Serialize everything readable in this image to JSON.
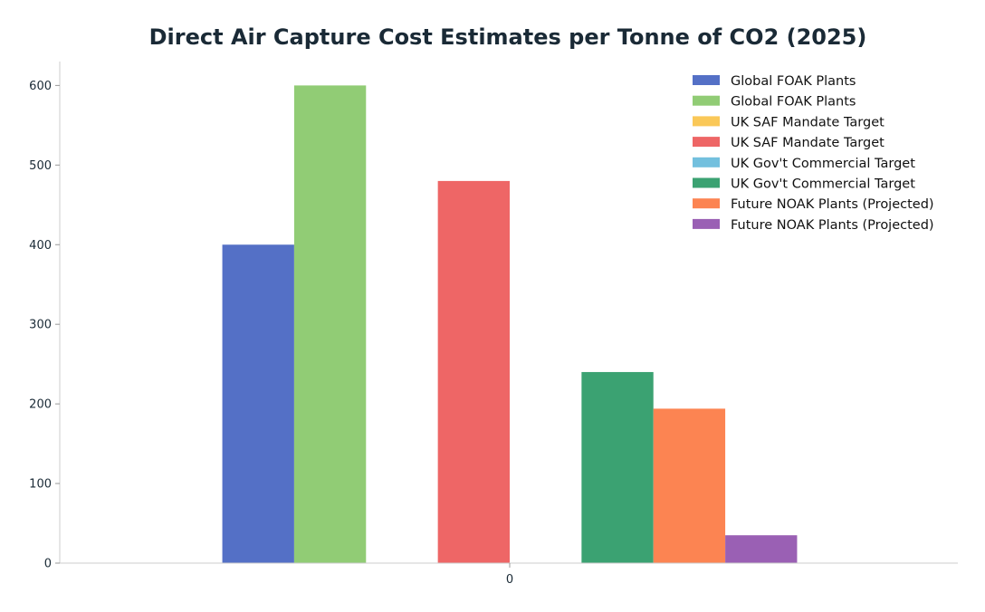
{
  "chart_data": {
    "type": "bar",
    "title": "Direct Air Capture Cost Estimates per Tonne of CO2 (2025)",
    "xlabel": "",
    "ylabel": "",
    "categories": [
      "0"
    ],
    "ylim": [
      0,
      630
    ],
    "yticks": [
      0,
      100,
      200,
      300,
      400,
      500,
      600
    ],
    "grid": false,
    "legend_position": "top-right",
    "series": [
      {
        "name": "Global FOAK Plants",
        "values": [
          400
        ],
        "color": "#5470c6"
      },
      {
        "name": "Global FOAK Plants",
        "values": [
          600
        ],
        "color": "#91cc75"
      },
      {
        "name": "UK SAF Mandate Target",
        "values": [
          0
        ],
        "color": "#fac858"
      },
      {
        "name": "UK SAF Mandate Target",
        "values": [
          480
        ],
        "color": "#ee6666"
      },
      {
        "name": "UK Gov't Commercial Target",
        "values": [
          0
        ],
        "color": "#73c0de"
      },
      {
        "name": "UK Gov't Commercial Target",
        "values": [
          240
        ],
        "color": "#3ba272"
      },
      {
        "name": "Future NOAK Plants (Projected)",
        "values": [
          194
        ],
        "color": "#fc8452"
      },
      {
        "name": "Future NOAK Plants (Projected)",
        "values": [
          35
        ],
        "color": "#9a60b4"
      }
    ]
  }
}
